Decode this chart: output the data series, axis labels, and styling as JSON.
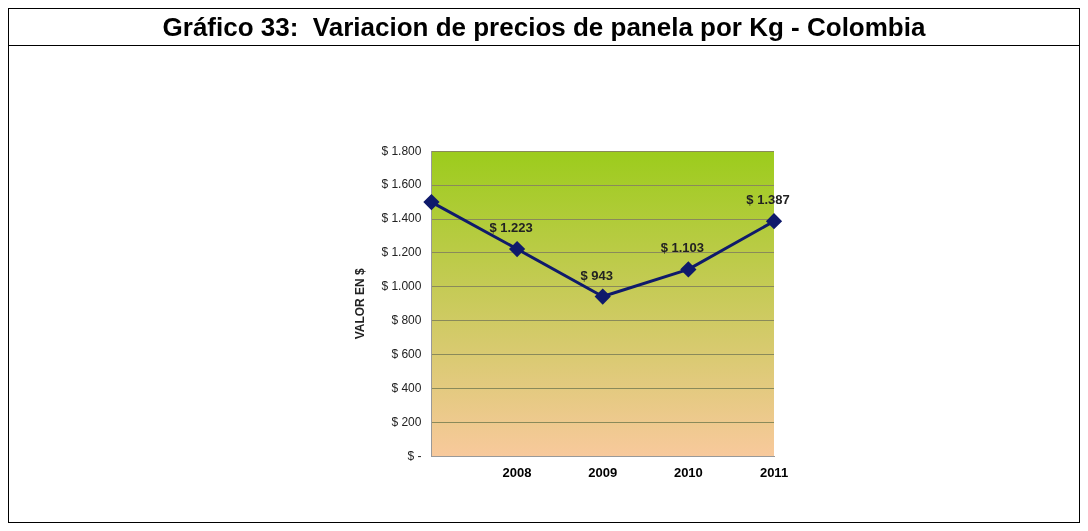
{
  "chart_data": {
    "type": "line",
    "title": "Gráfico 33:  Variacion de precios de panela por Kg - Colombia",
    "ylabel": "VALOR EN $",
    "categories": [
      null,
      "2008",
      "2009",
      "2010",
      "2011"
    ],
    "series": [
      {
        "color": "#0f1a6b",
        "values": [
          1500,
          1223,
          943,
          1103,
          1387
        ]
      }
    ],
    "value_labels": [
      null,
      "$ 1.223",
      "$ 943",
      "$ 1.103",
      "$ 1.387"
    ],
    "ylim": [
      0,
      1800
    ],
    "yticks": [
      {
        "value": 0,
        "label": "$ -"
      },
      {
        "value": 200,
        "label": "$ 200"
      },
      {
        "value": 400,
        "label": "$ 400"
      },
      {
        "value": 600,
        "label": "$ 600"
      },
      {
        "value": 800,
        "label": "$ 800"
      },
      {
        "value": 1000,
        "label": "$ 1.000"
      },
      {
        "value": 1200,
        "label": "$ 1.200"
      },
      {
        "value": 1400,
        "label": "$ 1.400"
      },
      {
        "value": 1600,
        "label": "$ 1.600"
      },
      {
        "value": 1800,
        "label": "$ 1.800"
      }
    ],
    "grid": "y",
    "legend": false,
    "marker": "diamond",
    "line_style": "solid"
  }
}
